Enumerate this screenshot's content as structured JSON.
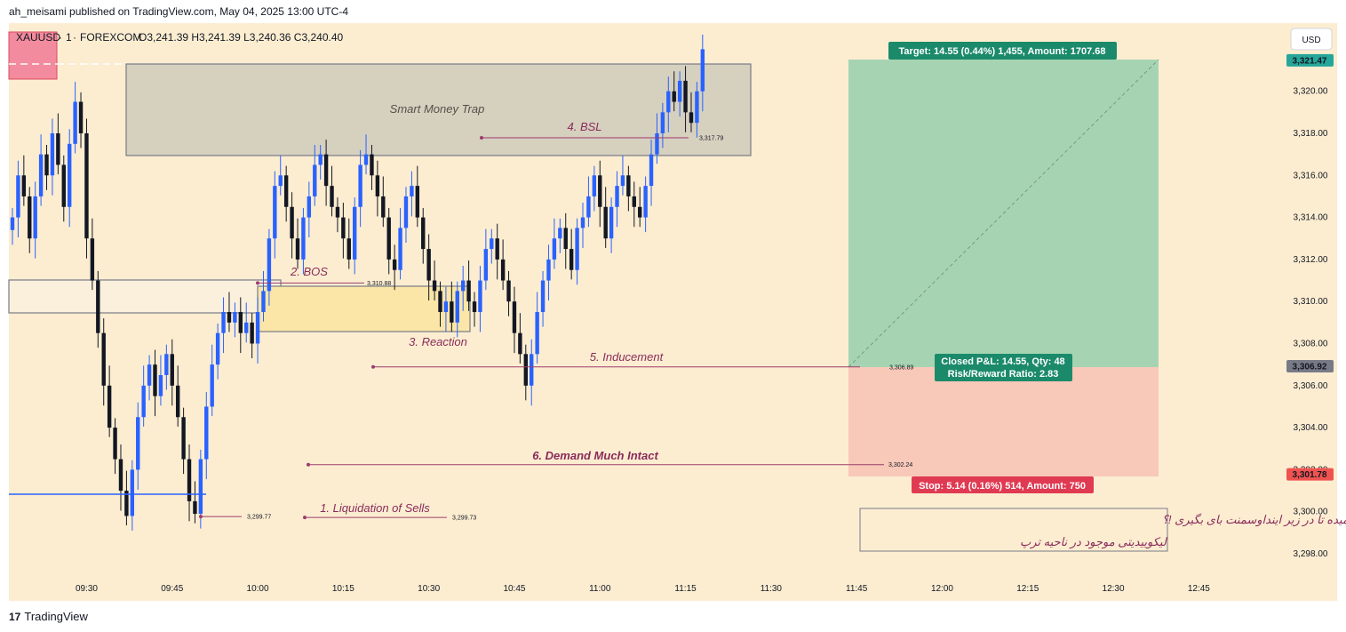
{
  "header": {
    "publisher": "ah_meisami published on TradingView.com, May 04, 2025 13:00 UTC-4"
  },
  "footer": {
    "brand": "TradingView"
  },
  "legend": {
    "symbol": "XAUUSD",
    "interval": "1",
    "exchange": "FOREXCOM",
    "ohlc": "O3,241.39  H3,241.39  L3,240.36  C3,240.40"
  },
  "currency_button": "USD",
  "price_badges": [
    {
      "value": 3321.47,
      "text": "3,321.47",
      "color": "#26a69a"
    },
    {
      "value": 3306.92,
      "text": "3,306.92",
      "color": "#787b86"
    },
    {
      "value": 3301.78,
      "text": "3,301.78",
      "color": "#ef5350"
    }
  ],
  "annotations": {
    "smt": "Smart Money Trap",
    "bsl": "4. BSL",
    "bos": "2. BOS",
    "reaction": "3. Reaction",
    "inducement": "5. Inducement",
    "demand": "6. Demand Much Intact",
    "liquidation": "1. Liquidation of Sells",
    "persian_line1": "چی به تو کانفیدنس میده تا در زیر اینداوسمنت بای بگیری !؟",
    "persian_line2": "لیکوییدیتی موجود در ناحیه ترپ"
  },
  "levels": [
    {
      "name": "bsl-level",
      "price": 3317.79,
      "text": "3,317.79"
    },
    {
      "name": "bos-level",
      "price": 3310.88,
      "text": "3,310.88"
    },
    {
      "name": "inducement-level",
      "price": 3306.89,
      "text": "3,306.89"
    },
    {
      "name": "demand-level",
      "price": 3302.24,
      "text": "3,302.24"
    },
    {
      "name": "low1-level",
      "price": 3299.77,
      "text": "3,299.77"
    },
    {
      "name": "low2-level",
      "price": 3299.73,
      "text": "3,299.73"
    }
  ],
  "position": {
    "target_label": "Target: 14.55 (0.44%) 1,455, Amount: 1707.68",
    "stop_label": "Stop: 5.14 (0.16%) 514, Amount: 750",
    "pnl_line1": "Closed P&L: 14.55, Qty: 48",
    "pnl_line2": "Risk/Reward Ratio: 2.83",
    "entry": 3306.92,
    "target": 3321.47,
    "stop": 3301.78
  },
  "chart_data": {
    "type": "candlestick",
    "symbol": "XAUUSD",
    "y_ticks": [
      3298,
      3300,
      3302,
      3304,
      3306,
      3308,
      3310,
      3312,
      3314,
      3316,
      3318,
      3320
    ],
    "y_tick_labels": [
      "3,298.00",
      "3,300.00",
      "3,302.00",
      "3,304.00",
      "3,306.00",
      "3,308.00",
      "3,310.00",
      "3,312.00",
      "3,314.00",
      "3,316.00",
      "3,318.00",
      "3,320.00"
    ],
    "x_ticks": [
      "09:30",
      "09:45",
      "10:00",
      "10:15",
      "10:30",
      "10:45",
      "11:00",
      "11:15",
      "11:30",
      "11:45",
      "12:00",
      "12:15",
      "12:30",
      "12:45"
    ],
    "bar_interval_minutes": 1,
    "close_path": [
      3314.0,
      3316.0,
      3315.0,
      3313.0,
      3315.0,
      3317.0,
      3316.0,
      3318.0,
      3316.5,
      3314.5,
      3317.5,
      3319.5,
      3318.0,
      3313.0,
      3311.0,
      3308.5,
      3306.0,
      3304.0,
      3302.5,
      3301.0,
      3299.8,
      3302.0,
      3304.5,
      3306.0,
      3307.0,
      3305.5,
      3306.5,
      3307.5,
      3306.0,
      3304.5,
      3302.5,
      3300.5,
      3299.9,
      3302.5,
      3305.0,
      3307.0,
      3308.5,
      3309.5,
      3309.0,
      3309.5,
      3308.5,
      3309.0,
      3308.0,
      3309.5,
      3310.5,
      3313.0,
      3315.5,
      3316.0,
      3314.5,
      3313.0,
      3312.0,
      3314.0,
      3315.0,
      3316.5,
      3317.0,
      3315.5,
      3314.5,
      3314.0,
      3313.0,
      3312.0,
      3314.5,
      3316.5,
      3317.0,
      3316.0,
      3315.0,
      3314.0,
      3312.0,
      3311.5,
      3313.5,
      3315.0,
      3315.5,
      3314.0,
      3312.5,
      3311.0,
      3310.5,
      3309.5,
      3310.0,
      3309.0,
      3310.5,
      3311.0,
      3310.0,
      3309.5,
      3311.0,
      3312.5,
      3313.0,
      3312.0,
      3311.0,
      3310.0,
      3308.5,
      3307.5,
      3306.0,
      3307.5,
      3309.5,
      3311.0,
      3312.0,
      3313.0,
      3313.5,
      3312.5,
      3311.5,
      3313.5,
      3314.0,
      3315.0,
      3316.0,
      3314.5,
      3313.0,
      3314.5,
      3315.5,
      3316.0,
      3315.0,
      3314.5,
      3314.0,
      3315.5,
      3317.0,
      3318.0,
      3319.0,
      3320.0,
      3319.5,
      3320.5,
      3319.0,
      3318.5,
      3320.0,
      3322.0
    ]
  }
}
